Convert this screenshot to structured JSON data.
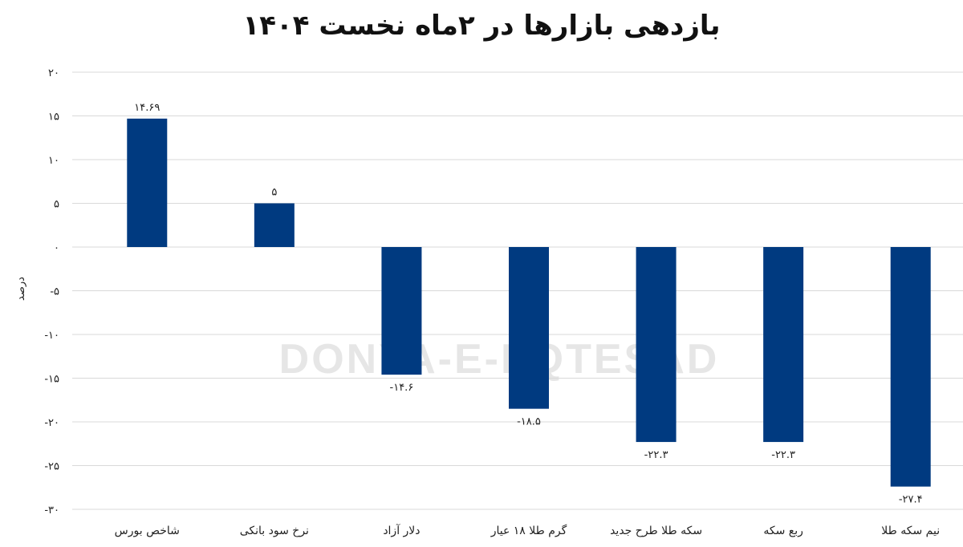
{
  "watermark": "DONYA-E-EQTESAD",
  "chart_data": {
    "type": "bar",
    "title": "بازدهی بازارها در ۲ماه نخست ۱۴۰۴",
    "xlabel": "",
    "ylabel": "درصد",
    "ylim": [
      -30,
      20
    ],
    "yticks": [
      20,
      15,
      10,
      5,
      0,
      -5,
      -10,
      -15,
      -20,
      -25,
      -30
    ],
    "ytick_labels": [
      "۲۰",
      "۱۵",
      "۱۰",
      "۵",
      "۰",
      "-۵",
      "-۱۰",
      "-۱۵",
      "-۲۰",
      "-۲۵",
      "-۳۰"
    ],
    "grid": true,
    "bar_color": "#003a80",
    "categories": [
      "شاخص بورس",
      "نرخ سود بانکی",
      "دلار آزاد",
      "گرم طلا ۱۸ عیار",
      "سکه طلا طرح جدید",
      "ربع سکه",
      "نیم سکه طلا"
    ],
    "values": [
      14.69,
      5,
      -14.6,
      -18.5,
      -22.3,
      -22.3,
      -27.4
    ],
    "data_labels": [
      "۱۴.۶۹",
      "۵",
      "-۱۴.۶",
      "-۱۸.۵",
      "-۲۲.۳",
      "-۲۲.۳",
      "-۲۷.۴"
    ]
  }
}
